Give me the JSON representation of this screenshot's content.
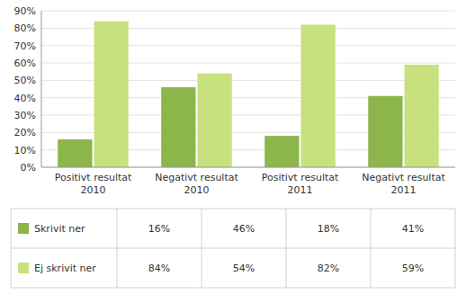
{
  "chart_data": {
    "type": "bar",
    "categories": [
      "Positivt resultat\n2010",
      "Negativt resultat\n2010",
      "Positivt resultat\n2011",
      "Negativt resultat\n2011"
    ],
    "series": [
      {
        "name": "Skrivit ner",
        "color": "#8CB54A",
        "values": [
          0.16,
          0.46,
          0.18,
          0.41
        ],
        "value_labels": [
          "16%",
          "46%",
          "18%",
          "41%"
        ]
      },
      {
        "name": "Ej skrivit ner",
        "color": "#C8E07E",
        "values": [
          0.84,
          0.54,
          0.82,
          0.59
        ],
        "value_labels": [
          "84%",
          "54%",
          "82%",
          "59%"
        ]
      }
    ],
    "ylim": [
      0,
      0.9
    ],
    "yticks": [
      {
        "value": 0.0,
        "label": "0%"
      },
      {
        "value": 0.1,
        "label": "10%"
      },
      {
        "value": 0.2,
        "label": "20%"
      },
      {
        "value": 0.3,
        "label": "30%"
      },
      {
        "value": 0.4,
        "label": "40%"
      },
      {
        "value": 0.5,
        "label": "50%"
      },
      {
        "value": 0.6,
        "label": "60%"
      },
      {
        "value": 0.7,
        "label": "70%"
      },
      {
        "value": 0.8,
        "label": "80%"
      },
      {
        "value": 0.9,
        "label": "90%"
      }
    ],
    "grid": true,
    "legend": "bottom"
  }
}
